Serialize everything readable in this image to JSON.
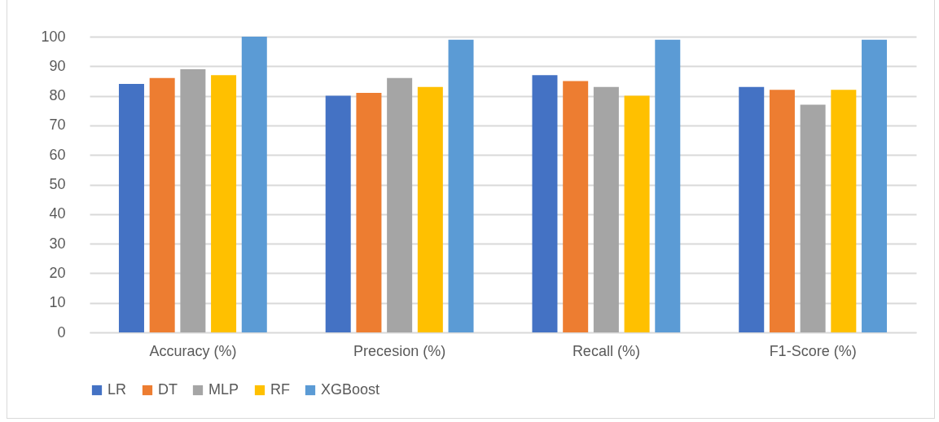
{
  "chart_data": {
    "type": "bar",
    "categories": [
      "Accuracy (%)",
      "Precesion (%)",
      "Recall (%)",
      "F1-Score (%)"
    ],
    "series": [
      {
        "name": "LR",
        "color": "#4472c4",
        "values": [
          84,
          80,
          87,
          83
        ]
      },
      {
        "name": "DT",
        "color": "#ed7d31",
        "values": [
          86,
          81,
          85,
          82
        ]
      },
      {
        "name": "MLP",
        "color": "#a5a5a5",
        "values": [
          89,
          86,
          83,
          77
        ]
      },
      {
        "name": "RF",
        "color": "#ffc000",
        "values": [
          87,
          83,
          80,
          82
        ]
      },
      {
        "name": "XGBoost",
        "color": "#5b9bd5",
        "values": [
          100,
          99,
          99,
          99
        ]
      }
    ],
    "ylim": [
      0,
      100
    ],
    "yticks": [
      0,
      10,
      20,
      30,
      40,
      50,
      60,
      70,
      80,
      90,
      100
    ],
    "grid": "y",
    "legend": "bottom"
  }
}
